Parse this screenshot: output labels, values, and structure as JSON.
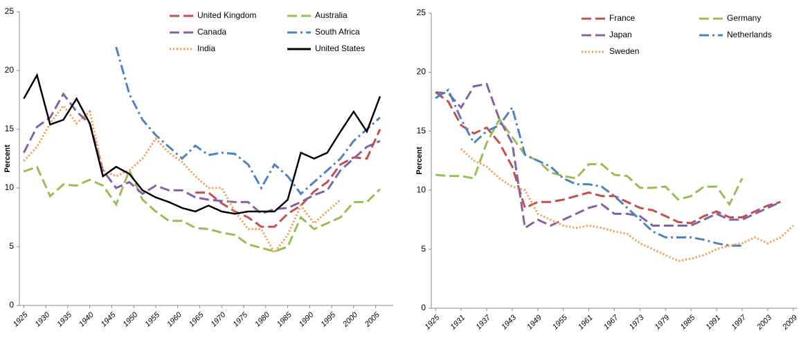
{
  "chart_data": [
    {
      "type": "line",
      "ylabel": "Percent",
      "xlim": [
        1924,
        2009
      ],
      "ylim": [
        0,
        25
      ],
      "yticks": [
        0,
        5,
        10,
        15,
        20,
        25
      ],
      "xticks": [
        1925,
        1930,
        1935,
        1940,
        1945,
        1950,
        1955,
        1960,
        1965,
        1970,
        1975,
        1980,
        1985,
        1990,
        1995,
        2000,
        2005
      ],
      "x": [
        1925,
        1928,
        1931,
        1934,
        1937,
        1940,
        1943,
        1946,
        1949,
        1952,
        1955,
        1958,
        1961,
        1964,
        1967,
        1970,
        1973,
        1976,
        1979,
        1982,
        1985,
        1988,
        1991,
        1994,
        1997,
        2000,
        2003,
        2006
      ],
      "series": [
        {
          "name": "United Kingdom",
          "color": "#c0504d",
          "style": "dash",
          "values": [
            null,
            null,
            null,
            null,
            null,
            null,
            null,
            null,
            null,
            null,
            null,
            null,
            null,
            9.6,
            9.6,
            8.7,
            8.0,
            7.5,
            6.7,
            6.7,
            7.8,
            8.5,
            9.7,
            10.5,
            12.0,
            12.6,
            12.5,
            15.0
          ]
        },
        {
          "name": "Australia",
          "color": "#9bbb59",
          "style": "dash",
          "values": [
            11.4,
            11.8,
            9.3,
            10.3,
            10.2,
            10.7,
            10.2,
            8.6,
            11.5,
            9.0,
            8.0,
            7.2,
            7.2,
            6.6,
            6.5,
            6.2,
            6.0,
            5.2,
            4.9,
            4.6,
            5.0,
            7.5,
            6.5,
            7.0,
            7.5,
            8.8,
            8.8,
            9.9
          ]
        },
        {
          "name": "Canada",
          "color": "#8064a2",
          "style": "dash",
          "values": [
            13.0,
            15.2,
            16.0,
            18.0,
            16.5,
            15.5,
            11.5,
            10.0,
            10.5,
            9.5,
            10.2,
            9.8,
            9.8,
            9.2,
            9.0,
            8.9,
            8.8,
            8.8,
            7.8,
            8.2,
            8.3,
            8.8,
            9.4,
            9.8,
            11.5,
            12.5,
            13.5,
            14.0
          ]
        },
        {
          "name": "South Africa",
          "color": "#4f81bd",
          "style": "dashdot",
          "values": [
            null,
            null,
            null,
            null,
            null,
            null,
            null,
            22.0,
            18.0,
            15.8,
            14.5,
            13.5,
            12.5,
            13.6,
            12.8,
            13.0,
            12.9,
            12.0,
            10.0,
            12.0,
            11.0,
            9.5,
            10.5,
            11.5,
            12.5,
            14.0,
            15.0,
            16.0
          ]
        },
        {
          "name": "India",
          "color": "#f79646",
          "style": "dot",
          "values": [
            12.3,
            13.5,
            15.5,
            17.0,
            15.5,
            16.5,
            11.5,
            11.0,
            11.5,
            12.5,
            14.2,
            13.0,
            12.2,
            11.0,
            10.0,
            10.0,
            8.0,
            6.5,
            6.5,
            4.5,
            6.0,
            8.5,
            7.0,
            8.0,
            9.0,
            null,
            null,
            null
          ]
        },
        {
          "name": "United States",
          "color": "#000000",
          "style": "solid",
          "values": [
            17.6,
            19.6,
            15.4,
            15.8,
            17.6,
            15.5,
            11.0,
            11.8,
            11.2,
            9.8,
            9.2,
            8.8,
            8.3,
            8.0,
            8.5,
            8.0,
            7.8,
            8.0,
            8.0,
            8.0,
            9.0,
            13.0,
            12.5,
            13.0,
            14.8,
            16.5,
            14.8,
            17.8
          ]
        }
      ]
    },
    {
      "type": "line",
      "ylabel": "Percent",
      "xlim": [
        1924,
        2010
      ],
      "ylim": [
        0,
        25
      ],
      "yticks": [
        0,
        5,
        10,
        15,
        20,
        25
      ],
      "xticks": [
        1925,
        1931,
        1937,
        1943,
        1949,
        1955,
        1961,
        1967,
        1973,
        1979,
        1985,
        1991,
        1997,
        2003,
        2009
      ],
      "x": [
        1925,
        1928,
        1931,
        1934,
        1937,
        1940,
        1943,
        1946,
        1949,
        1952,
        1955,
        1958,
        1961,
        1964,
        1967,
        1970,
        1973,
        1976,
        1979,
        1982,
        1985,
        1988,
        1991,
        1994,
        1997,
        2000,
        2003,
        2006,
        2009
      ],
      "series": [
        {
          "name": "France",
          "color": "#c0504d",
          "style": "dash",
          "values": [
            18.3,
            17.5,
            15.5,
            14.8,
            15.3,
            14.0,
            12.0,
            8.5,
            9.0,
            9.0,
            9.2,
            9.5,
            9.8,
            9.5,
            9.5,
            9.0,
            8.5,
            8.3,
            7.8,
            7.3,
            7.2,
            7.8,
            8.2,
            7.7,
            7.7,
            8.2,
            8.7,
            9.0,
            null
          ]
        },
        {
          "name": "Germany",
          "color": "#9bbb59",
          "style": "dash",
          "values": [
            11.3,
            11.2,
            11.2,
            11.0,
            14.0,
            16.0,
            14.5,
            13.0,
            12.5,
            11.5,
            11.2,
            11.0,
            12.2,
            12.2,
            11.3,
            11.2,
            10.2,
            10.2,
            10.3,
            9.2,
            9.5,
            10.3,
            10.3,
            8.8,
            11.0,
            null,
            null,
            null,
            null
          ]
        },
        {
          "name": "Japan",
          "color": "#8064a2",
          "style": "dash",
          "values": [
            18.3,
            18.2,
            17.0,
            18.8,
            19.0,
            16.0,
            14.0,
            6.8,
            7.5,
            7.0,
            7.5,
            8.0,
            8.5,
            8.8,
            8.0,
            8.0,
            7.8,
            7.0,
            7.0,
            7.0,
            7.0,
            7.5,
            8.0,
            7.5,
            7.5,
            8.0,
            8.5,
            9.0,
            null
          ]
        },
        {
          "name": "Netherlands",
          "color": "#4f81bd",
          "style": "dashdot",
          "values": [
            17.8,
            18.5,
            16.0,
            14.0,
            15.0,
            15.5,
            17.0,
            13.0,
            12.5,
            12.0,
            11.0,
            10.5,
            10.5,
            10.3,
            9.5,
            8.5,
            7.5,
            6.5,
            6.0,
            6.0,
            6.0,
            5.8,
            5.5,
            5.3,
            5.3,
            null,
            null,
            null,
            null
          ]
        },
        {
          "name": "Sweden",
          "color": "#f79646",
          "style": "dot",
          "values": [
            null,
            null,
            13.5,
            12.5,
            12.0,
            11.0,
            10.3,
            10.0,
            8.0,
            7.5,
            7.0,
            6.8,
            7.0,
            6.8,
            6.5,
            6.3,
            5.5,
            5.0,
            4.5,
            4.0,
            4.2,
            4.5,
            5.0,
            5.3,
            5.5,
            6.0,
            5.5,
            6.0,
            7.0
          ]
        }
      ]
    }
  ]
}
